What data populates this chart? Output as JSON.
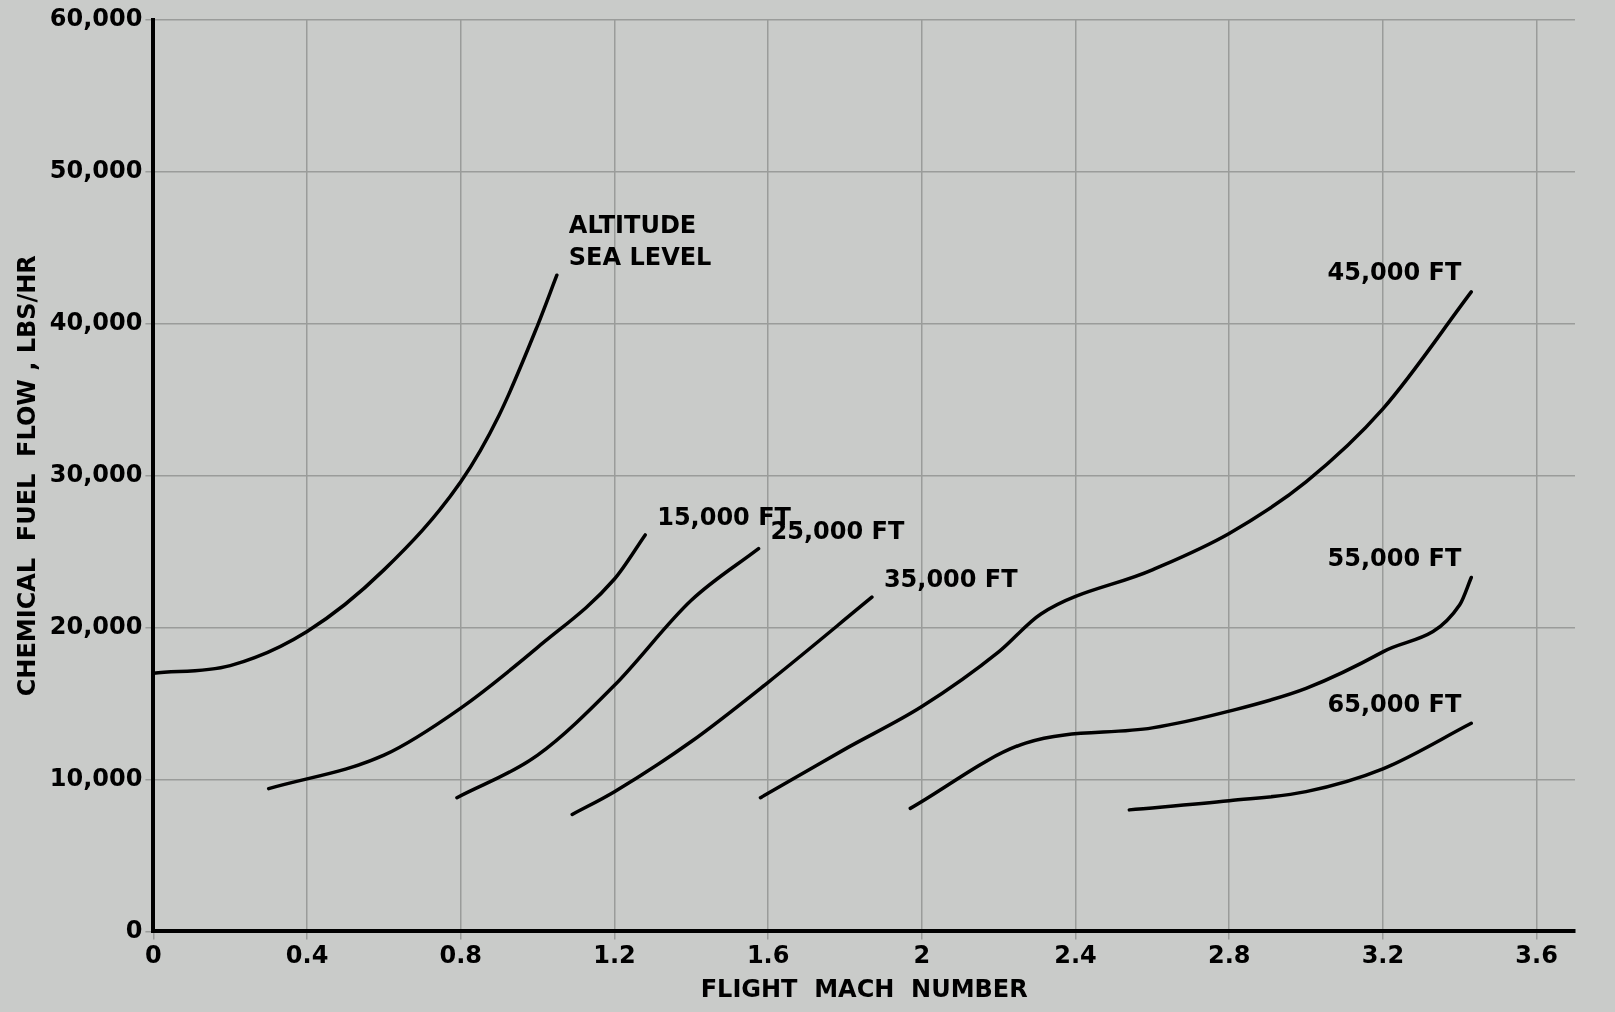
{
  "chart_data": {
    "type": "line",
    "xlabel": "FLIGHT  MACH  NUMBER",
    "ylabel": "CHEMICAL  FUEL  FLOW , LBS/HR",
    "xlim": [
      0,
      3.7
    ],
    "xticks": [
      0,
      0.4,
      0.8,
      1.2,
      1.6,
      2.0,
      2.4,
      2.8,
      3.2,
      3.6
    ],
    "ylim": [
      0,
      60000
    ],
    "yticks": [
      0,
      {
        "value": 10000,
        "label": "10,000"
      },
      {
        "value": 20000,
        "label": "20,000"
      },
      {
        "value": 30000,
        "label": "30,000"
      },
      {
        "value": 40000,
        "label": "40,000"
      },
      {
        "value": 50000,
        "label": "50,000"
      },
      {
        "value": 60000,
        "label": "60,000"
      }
    ],
    "grid": true,
    "legend": false,
    "marker": "none",
    "line_style": "solid",
    "annotations": [
      "ALTITUDE"
    ],
    "series": [
      {
        "name": "SEA LEVEL",
        "color": "#000000",
        "x": [
          0,
          0.2,
          0.4,
          0.6,
          0.8,
          0.9,
          1.0,
          1.05
        ],
        "values": [
          17000,
          17500,
          19750,
          23800,
          29600,
          34000,
          39900,
          43200
        ]
      },
      {
        "name": "15,000 FT",
        "color": "#000000",
        "x": [
          0.3,
          0.6,
          0.8,
          1.0,
          1.2,
          1.28
        ],
        "values": [
          9400,
          11600,
          14700,
          18700,
          23200,
          26100
        ]
      },
      {
        "name": "25,000 FT",
        "color": "#000000",
        "x": [
          0.79,
          1.0,
          1.2,
          1.4,
          1.575
        ],
        "values": [
          8800,
          11600,
          16200,
          21800,
          25200
        ]
      },
      {
        "name": "35,000 FT",
        "color": "#000000",
        "x": [
          1.09,
          1.2,
          1.4,
          1.6,
          1.87
        ],
        "values": [
          7700,
          9200,
          12500,
          16400,
          22000
        ]
      },
      {
        "name": "45,000 FT",
        "color": "#000000",
        "x": [
          1.58,
          1.8,
          2.0,
          2.2,
          2.31,
          2.6,
          2.8,
          3.0,
          3.2,
          3.43
        ],
        "values": [
          8800,
          12000,
          14800,
          18400,
          20900,
          23800,
          26200,
          29600,
          34400,
          42100
        ]
      },
      {
        "name": "55,000 FT",
        "color": "#000000",
        "x": [
          1.97,
          2.27,
          2.6,
          2.8,
          3.0,
          3.2,
          3.4,
          3.43
        ],
        "values": [
          8100,
          12400,
          13400,
          14500,
          16000,
          18400,
          21500,
          23300
        ]
      },
      {
        "name": "65,000 FT",
        "color": "#000000",
        "x": [
          2.54,
          2.8,
          3.0,
          3.2,
          3.43
        ],
        "values": [
          8000,
          8600,
          9200,
          10700,
          13700
        ]
      }
    ]
  }
}
